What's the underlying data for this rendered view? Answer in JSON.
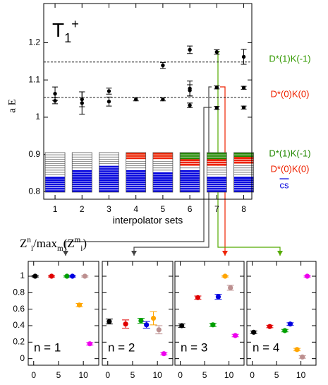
{
  "chart_data": [
    {
      "type": "scatter",
      "title_parts": [
        {
          "text": "T",
          "pos": "base"
        },
        {
          "text": "1",
          "pos": "sub"
        },
        {
          "text": "+",
          "pos": "sup"
        }
      ],
      "xlabel": "interpolator sets",
      "ylabel": "a E",
      "xlim": [
        0.58,
        8.3
      ],
      "xticks": [
        1,
        2,
        3,
        4,
        5,
        6,
        7,
        8
      ],
      "ylim": [
        0.78,
        1.305
      ],
      "yticks": [
        0.8,
        0.9,
        1,
        1.1,
        1.2
      ],
      "series": [
        {
          "color": "#000000",
          "x": [
            1,
            1,
            2,
            2,
            3,
            3,
            4,
            5,
            5,
            6,
            6,
            6,
            6,
            7,
            7,
            7,
            8,
            8,
            8
          ],
          "values": [
            1.063,
            1.044,
            1.048,
            1.038,
            1.07,
            1.042,
            1.048,
            1.139,
            1.048,
            1.181,
            1.072,
            1.077,
            1.032,
            1.175,
            1.08,
            1.025,
            1.162,
            1.079,
            1.026
          ],
          "errors": [
            0.018,
            0.008,
            0.02,
            0.03,
            0.008,
            0.012,
            0.004,
            0.008,
            0.004,
            0.01,
            0.015,
            0.02,
            0.006,
            0.006,
            0.004,
            0.004,
            0.02,
            0.004,
            0.004
          ]
        }
      ],
      "hlines": [
        {
          "value": 1.148,
          "label": "D*(1)K(-1)",
          "color": "#339900"
        },
        {
          "value": 1.053,
          "label": "D*(0)K(0)",
          "color": "#ee2200"
        }
      ],
      "operator_legend": [
        {
          "name": "D*(1)K(-1)",
          "color": "#228800"
        },
        {
          "name": "D*(0)K(0)",
          "color": "#ee2200"
        },
        {
          "name": "cs",
          "color": "#0000dd"
        }
      ],
      "operator_sets": [
        {
          "green": 0,
          "red": 0,
          "white": 11,
          "blue": 7
        },
        {
          "green": 0,
          "red": 0,
          "white": 8,
          "blue": 10
        },
        {
          "green": 0,
          "red": 0,
          "white": 6,
          "blue": 12
        },
        {
          "green": 0,
          "red": 3,
          "white": 5,
          "blue": 10
        },
        {
          "green": 0,
          "red": 3,
          "white": 6,
          "blue": 9
        },
        {
          "green": 3,
          "red": 3,
          "white": 2,
          "blue": 10
        },
        {
          "green": 3,
          "red": 3,
          "white": 5,
          "blue": 7
        },
        {
          "green": 2,
          "red": 3,
          "white": 6,
          "blue": 7
        }
      ]
    },
    {
      "type": "scatter",
      "annotation": "n = 1",
      "xlim": [
        -1.1,
        13.1
      ],
      "xticks": [
        0,
        5,
        10
      ],
      "ylim": [
        -0.08,
        1.18
      ],
      "yticks": [
        0,
        0.2,
        0.4,
        0.6,
        0.8,
        1
      ],
      "show_ytick_labels": true,
      "series": [
        {
          "color": "#000000",
          "x": [
            0.3
          ],
          "values": [
            1.0
          ],
          "errors": [
            0.01
          ]
        },
        {
          "color": "#e00000",
          "x": [
            3.6
          ],
          "values": [
            1.0
          ],
          "errors": [
            0.01
          ]
        },
        {
          "color": "#00a000",
          "x": [
            6.7
          ],
          "values": [
            1.0
          ],
          "errors": [
            0.01
          ]
        },
        {
          "color": "#0000e0",
          "x": [
            7.8
          ],
          "values": [
            1.0
          ],
          "errors": [
            0.01
          ]
        },
        {
          "color": "#ffa500",
          "x": [
            9.2
          ],
          "values": [
            0.65
          ],
          "errors": [
            0.02
          ]
        },
        {
          "color": "#bc8f8f",
          "x": [
            10.3
          ],
          "values": [
            1.0
          ],
          "errors": [
            0.01
          ]
        },
        {
          "color": "#ee00ee",
          "x": [
            11.3
          ],
          "values": [
            0.18
          ],
          "errors": [
            0.015
          ]
        }
      ]
    },
    {
      "type": "scatter",
      "annotation": "n = 2",
      "xlim": [
        -1.1,
        13.1
      ],
      "xticks": [
        0,
        5,
        10
      ],
      "ylim": [
        -0.08,
        1.18
      ],
      "yticks": [
        0,
        0.2,
        0.4,
        0.6,
        0.8,
        1
      ],
      "show_ytick_labels": false,
      "series": [
        {
          "color": "#000000",
          "x": [
            0.3
          ],
          "values": [
            0.45
          ],
          "errors": [
            0.03
          ]
        },
        {
          "color": "#e00000",
          "x": [
            3.6
          ],
          "values": [
            0.42
          ],
          "errors": [
            0.05
          ]
        },
        {
          "color": "#00a000",
          "x": [
            6.7
          ],
          "values": [
            0.46
          ],
          "errors": [
            0.03
          ]
        },
        {
          "color": "#0000e0",
          "x": [
            7.8
          ],
          "values": [
            0.41
          ],
          "errors": [
            0.04
          ]
        },
        {
          "color": "#ffa500",
          "x": [
            9.2
          ],
          "values": [
            0.49
          ],
          "errors": [
            0.08
          ]
        },
        {
          "color": "#bc8f8f",
          "x": [
            10.3
          ],
          "values": [
            0.35
          ],
          "errors": [
            0.05
          ]
        },
        {
          "color": "#ee00ee",
          "x": [
            11.3
          ],
          "values": [
            0.06
          ],
          "errors": [
            0.015
          ]
        }
      ]
    },
    {
      "type": "scatter",
      "annotation": "n = 3",
      "xlim": [
        -1.1,
        13.1
      ],
      "xticks": [
        0,
        5,
        10
      ],
      "ylim": [
        -0.08,
        1.18
      ],
      "yticks": [
        0,
        0.2,
        0.4,
        0.6,
        0.8,
        1
      ],
      "show_ytick_labels": false,
      "series": [
        {
          "color": "#000000",
          "x": [
            0.3
          ],
          "values": [
            0.4
          ],
          "errors": [
            0.02
          ]
        },
        {
          "color": "#e00000",
          "x": [
            3.6
          ],
          "values": [
            0.74
          ],
          "errors": [
            0.02
          ]
        },
        {
          "color": "#00a000",
          "x": [
            6.7
          ],
          "values": [
            0.41
          ],
          "errors": [
            0.02
          ]
        },
        {
          "color": "#0000e0",
          "x": [
            7.8
          ],
          "values": [
            0.75
          ],
          "errors": [
            0.03
          ]
        },
        {
          "color": "#ffa500",
          "x": [
            9.2
          ],
          "values": [
            1.0
          ],
          "errors": [
            0.01
          ]
        },
        {
          "color": "#bc8f8f",
          "x": [
            10.3
          ],
          "values": [
            0.86
          ],
          "errors": [
            0.03
          ]
        },
        {
          "color": "#ee00ee",
          "x": [
            11.3
          ],
          "values": [
            0.28
          ],
          "errors": [
            0.015
          ]
        }
      ]
    },
    {
      "type": "scatter",
      "annotation": "n = 4",
      "xlim": [
        -1.1,
        13.1
      ],
      "xticks": [
        0,
        5,
        10
      ],
      "ylim": [
        -0.08,
        1.18
      ],
      "yticks": [
        0,
        0.2,
        0.4,
        0.6,
        0.8,
        1
      ],
      "show_ytick_labels": false,
      "series": [
        {
          "color": "#000000",
          "x": [
            0.3
          ],
          "values": [
            0.32
          ],
          "errors": [
            0.015
          ]
        },
        {
          "color": "#e00000",
          "x": [
            3.6
          ],
          "values": [
            0.39
          ],
          "errors": [
            0.015
          ]
        },
        {
          "color": "#00a000",
          "x": [
            6.7
          ],
          "values": [
            0.34
          ],
          "errors": [
            0.015
          ]
        },
        {
          "color": "#0000e0",
          "x": [
            7.8
          ],
          "values": [
            0.42
          ],
          "errors": [
            0.015
          ]
        },
        {
          "color": "#ffa500",
          "x": [
            9.2
          ],
          "values": [
            0.11
          ],
          "errors": [
            0.015
          ]
        },
        {
          "color": "#bc8f8f",
          "x": [
            10.3
          ],
          "values": [
            0.02
          ],
          "errors": [
            0.015
          ]
        },
        {
          "color": "#ee00ee",
          "x": [
            11.3
          ],
          "values": [
            1.0
          ],
          "errors": [
            0.01
          ]
        }
      ]
    }
  ],
  "figure_label_parts": [
    {
      "text": "Z",
      "pos": "base"
    },
    {
      "text": "n",
      "pos": "sup"
    },
    {
      "text": "i",
      "pos": "sub"
    },
    {
      "text": "/max",
      "pos": "base"
    },
    {
      "text": "m",
      "pos": "sub"
    },
    {
      "text": "(Z",
      "pos": "base"
    },
    {
      "text": "m",
      "pos": "sup"
    },
    {
      "text": "i",
      "pos": "sub"
    },
    {
      "text": ")",
      "pos": "base"
    }
  ]
}
